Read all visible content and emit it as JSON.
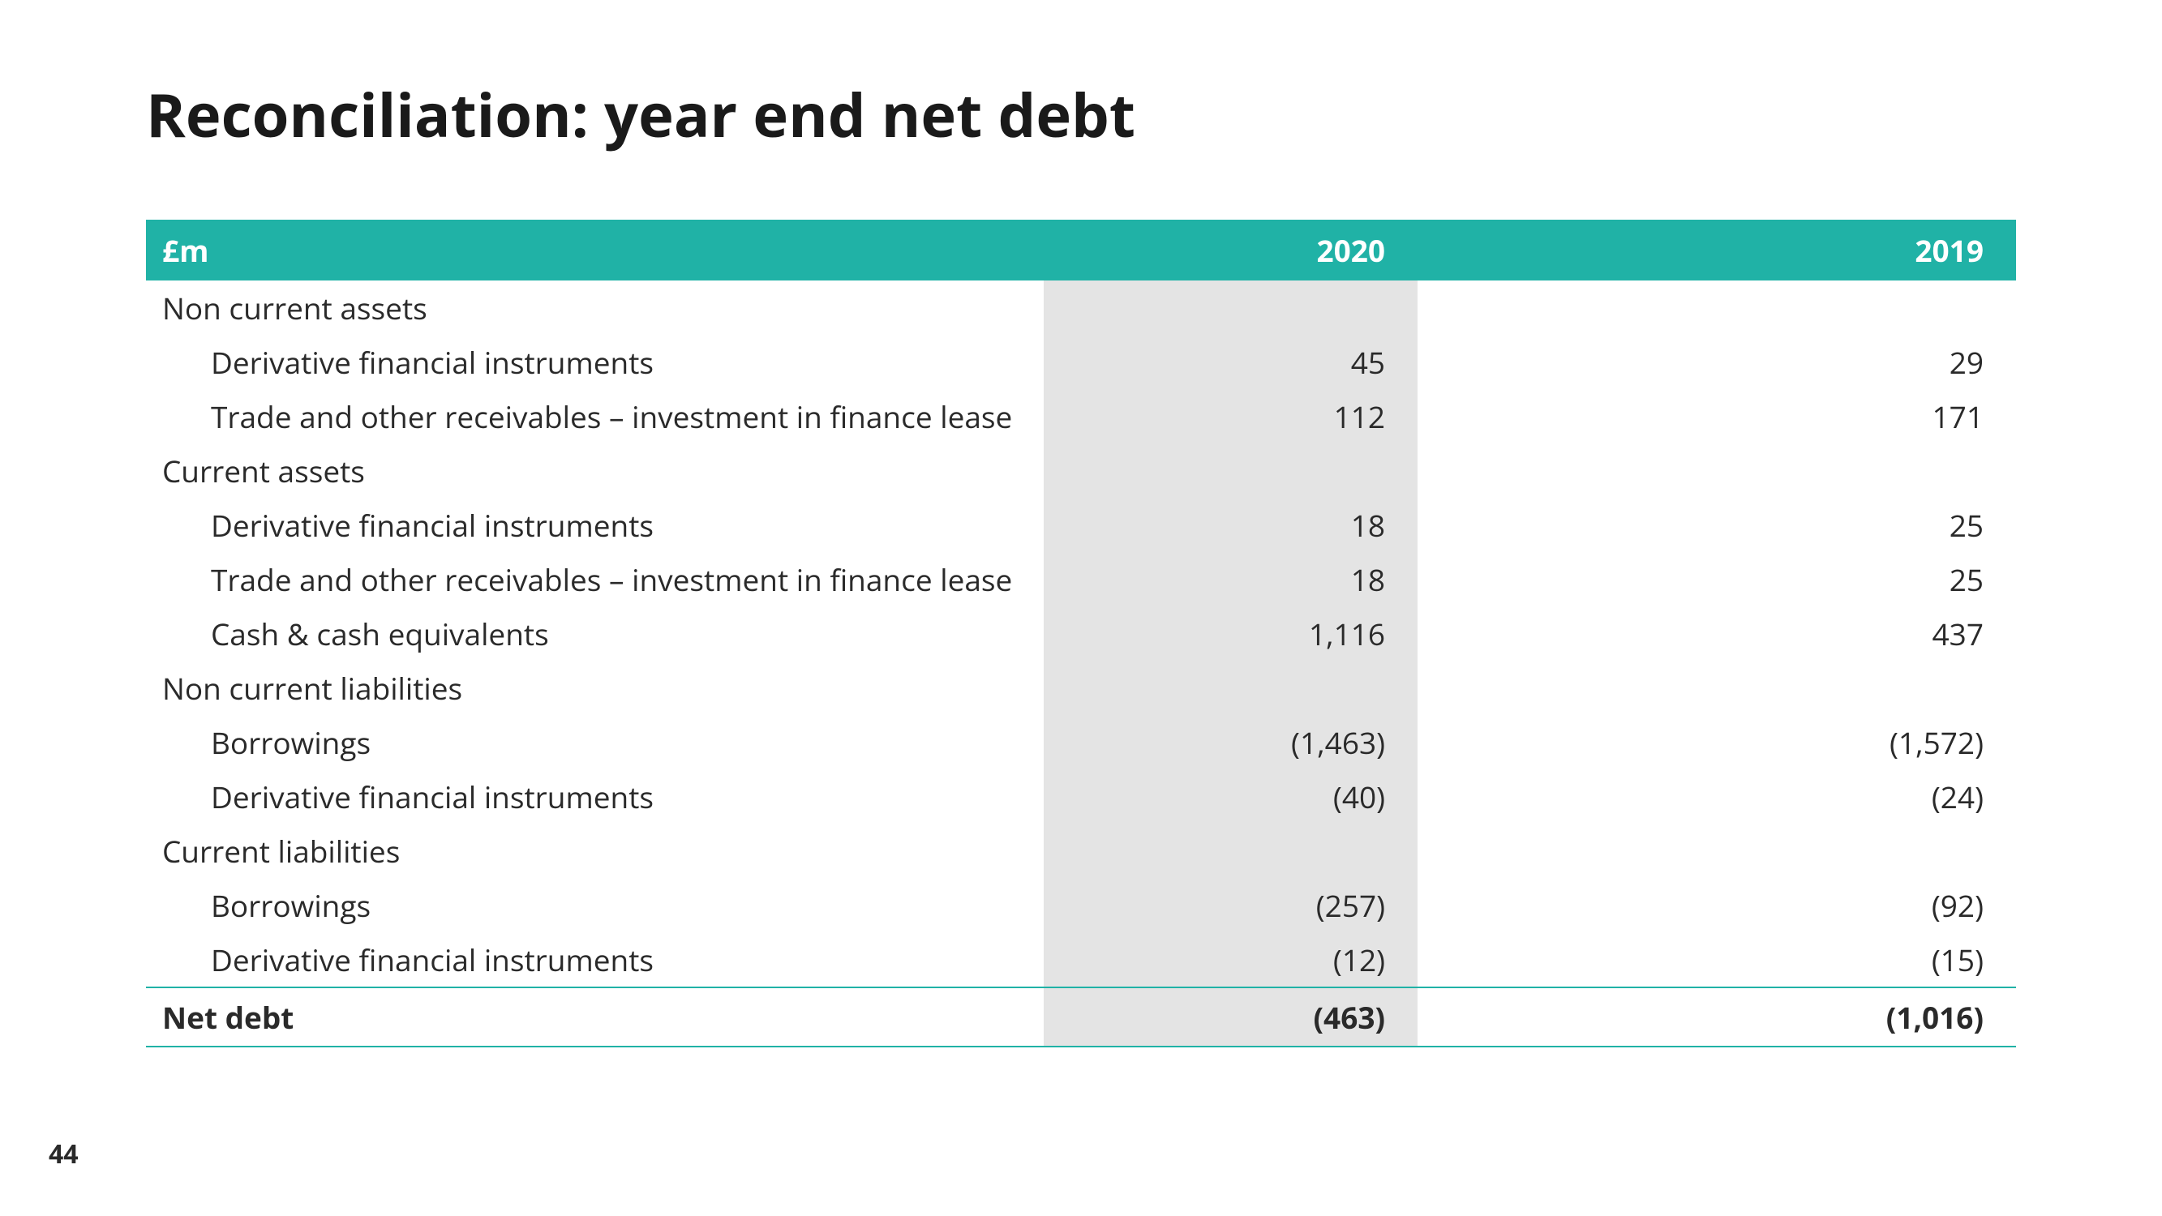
{
  "page_number": "44",
  "title": "Reconciliation: year end net debt",
  "table": {
    "type": "table",
    "header_bg": "#20b2a6",
    "header_fg": "#ffffff",
    "shade_bg": "#e4e4e4",
    "rule_color": "#20b2a6",
    "font_size_pt": 28,
    "columns": {
      "label": "£m",
      "y2020": "2020",
      "y2019": "2019"
    },
    "rows": [
      {
        "kind": "section",
        "label": "Non current assets",
        "y2020": "",
        "y2019": ""
      },
      {
        "kind": "item",
        "label": "Derivative financial instruments",
        "y2020": "45",
        "y2019": "29"
      },
      {
        "kind": "item",
        "label": "Trade and other receivables – investment in finance lease",
        "y2020": "112",
        "y2019": "171"
      },
      {
        "kind": "section",
        "label": "Current assets",
        "y2020": "",
        "y2019": ""
      },
      {
        "kind": "item",
        "label": "Derivative financial instruments",
        "y2020": "18",
        "y2019": "25"
      },
      {
        "kind": "item",
        "label": "Trade and other receivables – investment in finance lease",
        "y2020": "18",
        "y2019": "25"
      },
      {
        "kind": "item",
        "label": "Cash & cash equivalents",
        "y2020": "1,116",
        "y2019": "437"
      },
      {
        "kind": "section",
        "label": "Non current liabilities",
        "y2020": "",
        "y2019": ""
      },
      {
        "kind": "item",
        "label": "Borrowings",
        "y2020": "(1,463)",
        "y2019": "(1,572)"
      },
      {
        "kind": "item",
        "label": "Derivative financial instruments",
        "y2020": "(40)",
        "y2019": "(24)"
      },
      {
        "kind": "section",
        "label": "Current liabilities",
        "y2020": "",
        "y2019": ""
      },
      {
        "kind": "item",
        "label": "Borrowings",
        "y2020": "(257)",
        "y2019": "(92)"
      },
      {
        "kind": "item",
        "label": "Derivative financial instruments",
        "y2020": "(12)",
        "y2019": "(15)"
      }
    ],
    "total": {
      "label": "Net debt",
      "y2020": "(463)",
      "y2019": "(1,016)"
    }
  }
}
